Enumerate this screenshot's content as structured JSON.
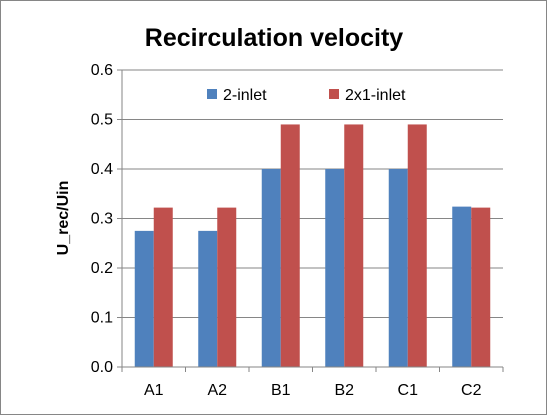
{
  "chart_data": {
    "type": "bar",
    "title": "Recirculation velocity",
    "xlabel": "",
    "ylabel": "U_rec/Uin",
    "categories": [
      "A1",
      "A2",
      "B1",
      "B2",
      "C1",
      "C2"
    ],
    "series": [
      {
        "name": "2-inlet",
        "color": "#4F81BD",
        "values": [
          0.275,
          0.275,
          0.4,
          0.4,
          0.4,
          0.324
        ]
      },
      {
        "name": "2x1-inlet",
        "color": "#C0504D",
        "values": [
          0.322,
          0.322,
          0.49,
          0.49,
          0.49,
          0.322
        ]
      }
    ],
    "ylim": [
      0,
      0.6
    ],
    "yticks": [
      "0.0",
      "0.1",
      "0.2",
      "0.3",
      "0.4",
      "0.5",
      "0.6"
    ],
    "grid": true,
    "legend": "top-center"
  }
}
